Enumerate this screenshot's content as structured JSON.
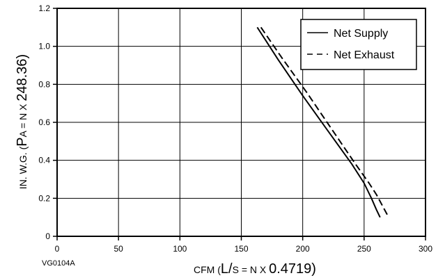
{
  "chart_data": {
    "type": "line",
    "title": "",
    "figure_code": "VG0104A",
    "xlabel": {
      "part1": "CFM (",
      "part2": "L/",
      "part3": "S = N X ",
      "part4": "0.4719)"
    },
    "ylabel": {
      "part1": "IN. W.G. (",
      "part2": "P",
      "part3": "A = N X ",
      "part4": "248.36)"
    },
    "xlim": [
      0,
      300
    ],
    "ylim": [
      0,
      1.2
    ],
    "xticks": [
      0,
      50,
      100,
      150,
      200,
      250,
      300
    ],
    "xtick_labels": [
      "0",
      "50",
      "100",
      "150",
      "200",
      "250",
      "300"
    ],
    "yticks": [
      0,
      0.2,
      0.4,
      0.6,
      0.8,
      1.0,
      1.2
    ],
    "ytick_labels": [
      "0",
      "0.2",
      "0.4",
      "0.6",
      "0.8",
      "1.0",
      "1.2"
    ],
    "grid": true,
    "legend_position": "top-right",
    "series": [
      {
        "name": "Net Supply",
        "style": "solid",
        "color": "#000000",
        "x": [
          163,
          180,
          200,
          220,
          240,
          250,
          256,
          260,
          263
        ],
        "y": [
          1.1,
          0.93,
          0.74,
          0.56,
          0.38,
          0.28,
          0.2,
          0.14,
          0.1
        ]
      },
      {
        "name": "Net Exhaust",
        "style": "dashed",
        "color": "#000000",
        "x": [
          166,
          183,
          203,
          223,
          243,
          254,
          260,
          265,
          270
        ],
        "y": [
          1.1,
          0.94,
          0.76,
          0.57,
          0.38,
          0.28,
          0.22,
          0.16,
          0.1
        ]
      }
    ]
  }
}
